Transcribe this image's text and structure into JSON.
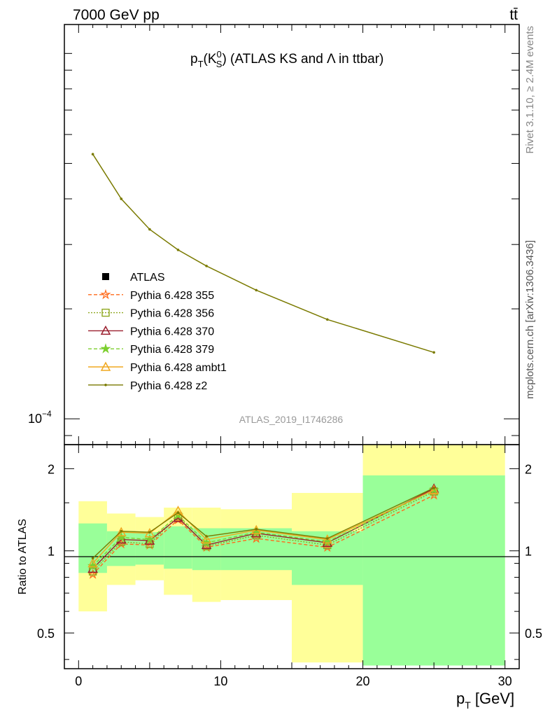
{
  "header": {
    "left": "7000 GeV pp",
    "right": "tt̄"
  },
  "side_labels": {
    "rivet": "Rivet 3.1.10, ≥ 2.4M events",
    "mcplots": "mcplots.cern.ch [arXiv:1306.3436]"
  },
  "watermark": "ATLAS_2019_I1746286",
  "chart_data": [
    {
      "type": "line",
      "title": "p_T(K_S^0) (ATLAS KS and Λ in ttbar)",
      "title_parts": {
        "p": "p",
        "T": "T",
        "K": "(K",
        "zero": "0",
        "S": "S",
        "rest": ") (ATLAS KS and Λ in ttbar)"
      },
      "yscale": "log",
      "ytick_label": "10^-4",
      "ytick_parts": {
        "base": "10",
        "exp": "−4"
      },
      "ylim": [
        8.5e-05,
        0.0012
      ],
      "xlim": [
        -1,
        31
      ],
      "x": [
        1,
        3,
        5,
        7,
        9,
        12.5,
        17.5,
        25
      ],
      "series": [
        {
          "name": "Pythia 6.428 z2",
          "color": "#7a7a00",
          "values": [
            0.00053,
            0.0004,
            0.00033,
            0.00029,
            0.000262,
            0.000225,
            0.000187,
            0.000152
          ]
        }
      ],
      "legend": {
        "position": "left-middle",
        "entries": [
          {
            "name": "ATLAS",
            "color": "#000000",
            "marker": "square-filled",
            "line": "none"
          },
          {
            "name": "Pythia 6.428 355",
            "color": "#ff6a1a",
            "marker": "star-open",
            "line": "dashed"
          },
          {
            "name": "Pythia 6.428 356",
            "color": "#8fa820",
            "marker": "square-open",
            "line": "dotted"
          },
          {
            "name": "Pythia 6.428 370",
            "color": "#9a1f2e",
            "marker": "triangle-open",
            "line": "solid"
          },
          {
            "name": "Pythia 6.428 379",
            "color": "#7ccf2e",
            "marker": "star-filled",
            "line": "dashed"
          },
          {
            "name": "Pythia 6.428 ambt1",
            "color": "#f0a820",
            "marker": "triangle-open",
            "line": "solid"
          },
          {
            "name": "Pythia 6.428 z2",
            "color": "#7a7a00",
            "marker": "dot",
            "line": "solid"
          }
        ]
      }
    },
    {
      "type": "line",
      "ylabel": "Ratio to ATLAS",
      "xlabel": "p_T [GeV]",
      "xlabel_parts": {
        "p": "p",
        "T": "T",
        "unit": " [GeV]"
      },
      "yscale": "log",
      "ylim": [
        0.37,
        2.45
      ],
      "xlim": [
        -1,
        31
      ],
      "xticks": [
        0,
        10,
        20,
        30
      ],
      "yticks": [
        0.5,
        1,
        2
      ],
      "ytick_labels": [
        "0.5",
        "1",
        "2"
      ],
      "xtick_labels": [
        "0",
        "10",
        "20",
        "30"
      ],
      "bins": [
        [
          0,
          2
        ],
        [
          2,
          4
        ],
        [
          4,
          6
        ],
        [
          6,
          8
        ],
        [
          8,
          10
        ],
        [
          10,
          15
        ],
        [
          15,
          20
        ],
        [
          20,
          30
        ]
      ],
      "band_inner": [
        [
          0.83,
          1.26
        ],
        [
          0.88,
          1.18
        ],
        [
          0.89,
          1.17
        ],
        [
          0.86,
          1.23
        ],
        [
          0.85,
          1.21
        ],
        [
          0.85,
          1.21
        ],
        [
          0.75,
          1.18
        ],
        [
          0.38,
          1.89
        ]
      ],
      "band_outer": [
        [
          0.6,
          1.52
        ],
        [
          0.75,
          1.37
        ],
        [
          0.78,
          1.33
        ],
        [
          0.69,
          1.44
        ],
        [
          0.65,
          1.44
        ],
        [
          0.66,
          1.42
        ],
        [
          0.39,
          1.63
        ],
        [
          0.38,
          2.45
        ]
      ],
      "band_colors": {
        "inner": "#99ff99",
        "outer": "#ffff99"
      },
      "x": [
        1,
        3,
        5,
        7,
        9,
        12.5,
        17.5,
        25
      ],
      "series": [
        {
          "name": "Pythia 6.428 355",
          "color": "#ff6a1a",
          "values": [
            0.82,
            1.06,
            1.05,
            1.3,
            1.03,
            1.11,
            1.03,
            1.6
          ]
        },
        {
          "name": "Pythia 6.428 356",
          "color": "#8fa820",
          "values": [
            0.84,
            1.08,
            1.06,
            1.34,
            1.04,
            1.14,
            1.05,
            1.65
          ]
        },
        {
          "name": "Pythia 6.428 370",
          "color": "#9a1f2e",
          "values": [
            0.86,
            1.1,
            1.09,
            1.32,
            1.05,
            1.16,
            1.07,
            1.69
          ]
        },
        {
          "name": "Pythia 6.428 379",
          "color": "#7ccf2e",
          "values": [
            0.88,
            1.12,
            1.1,
            1.35,
            1.07,
            1.17,
            1.08,
            1.67
          ]
        },
        {
          "name": "Pythia 6.428 ambt1",
          "color": "#f0a820",
          "values": [
            0.9,
            1.17,
            1.16,
            1.4,
            1.1,
            1.19,
            1.1,
            1.67
          ]
        },
        {
          "name": "Pythia 6.428 z2",
          "color": "#7a7a00",
          "values": [
            0.94,
            1.18,
            1.17,
            1.38,
            1.13,
            1.2,
            1.11,
            1.7
          ]
        }
      ]
    }
  ]
}
